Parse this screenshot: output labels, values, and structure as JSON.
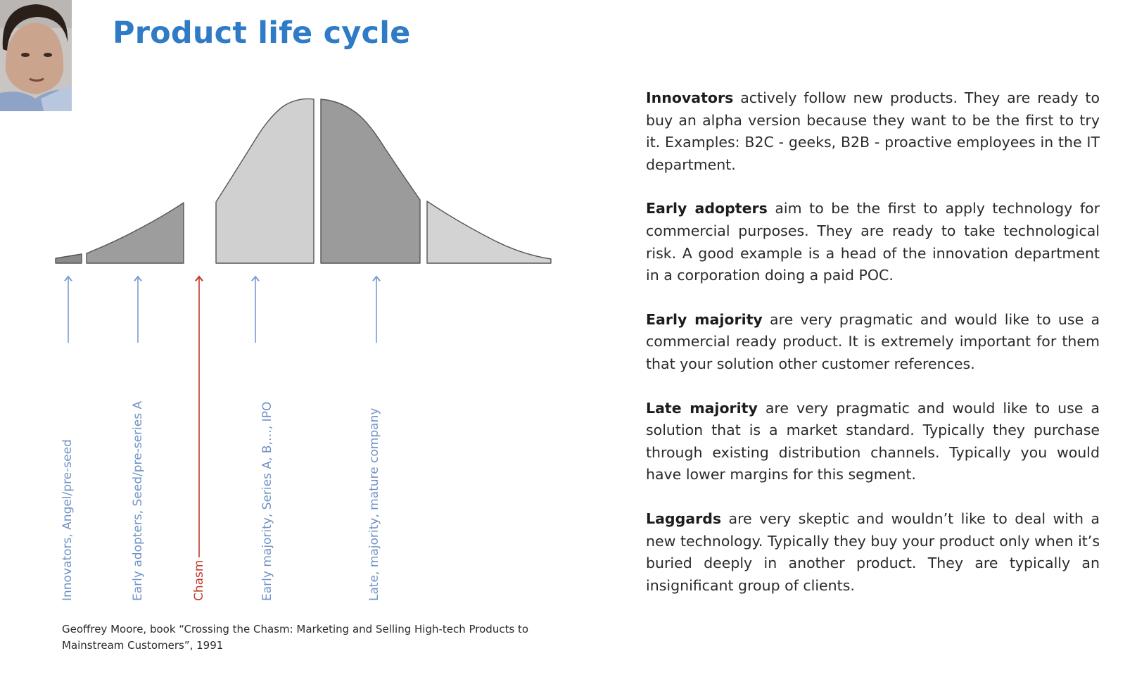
{
  "slide": {
    "title": "Product life cycle",
    "presenter_image": "presenter-webcam"
  },
  "diagram": {
    "stage_labels": [
      {
        "text": "Innovators, Angel/pre-seed",
        "color": "#6f93c5"
      },
      {
        "text": "Early adopters, Seed/pre-series A",
        "color": "#6f93c5"
      },
      {
        "text": "Chasm",
        "color": "#c0392b"
      },
      {
        "text": "Early majority, Series A, B,…, IPO",
        "color": "#6f93c5"
      },
      {
        "text": "Late, majority, mature company",
        "color": "#6f93c5"
      }
    ],
    "citation_line1": "Geoffrey Moore, book “Crossing the Chasm: Marketing and Selling High-tech Products to",
    "citation_line2": "Mainstream Customers”, 1991"
  },
  "segments": [
    {
      "term": "Innovators",
      "text": " actively follow new products. They are ready to buy an alpha version because they want to be the first to try it. Examples: B2C - geeks, B2B - proactive employees in the IT department."
    },
    {
      "term": "Early adopters",
      "text": " aim to be the first to apply technology for commercial purposes. They are ready to take technological risk. A good example is a head of the innovation department in a corporation doing a paid POC."
    },
    {
      "term": "Early majority",
      "text": " are very pragmatic and would like to use a commercial ready product. It is extremely important for them that your solution other customer references."
    },
    {
      "term": "Late majority",
      "text": " are very pragmatic and would like to use a solution that is a market standard. Typically they purchase through existing distribution channels. Typically you would have lower margins for this segment."
    },
    {
      "term": "Laggards",
      "text": " are very skeptic and wouldn’t like to deal with a new technology. Typically they buy your product only when it’s buried deeply in another product. They are typically an insignificant group of clients."
    }
  ],
  "colors": {
    "title": "#2f7bc5",
    "arrow": "#7a9ccc",
    "chasm": "#c0392b",
    "segment_dark": "#9b9b9b",
    "segment_light": "#d0d0d0",
    "segment_stroke": "#555555"
  }
}
